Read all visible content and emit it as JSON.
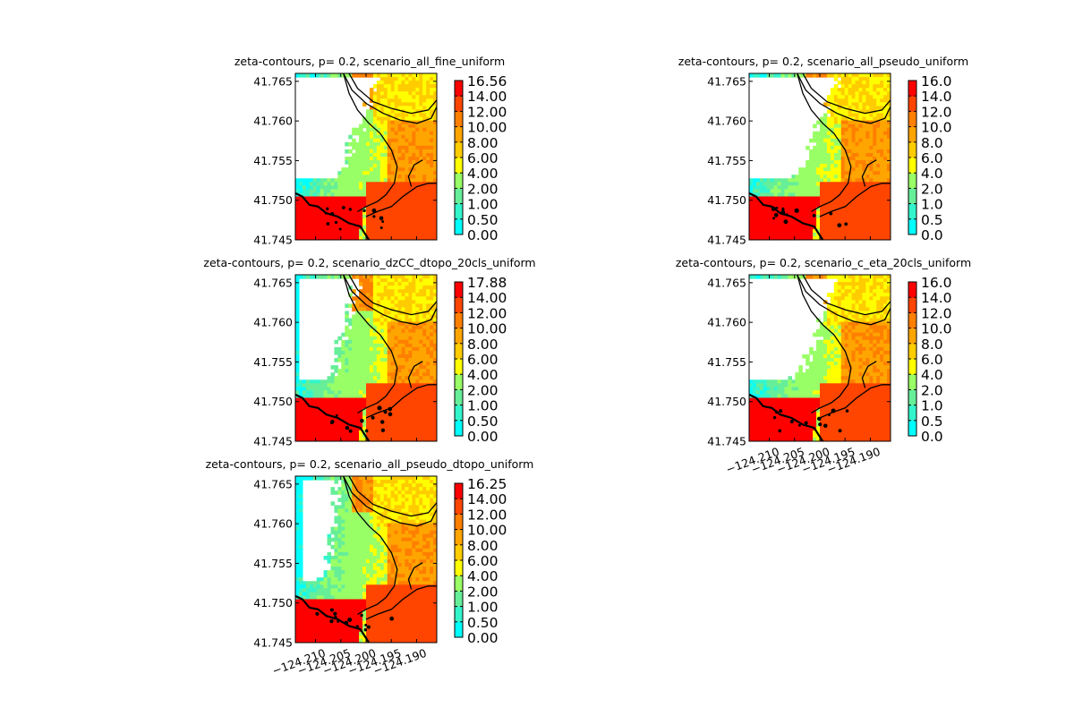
{
  "figure": {
    "background": "#ffffff"
  },
  "colormap": {
    "boundaries": [
      0,
      0.5,
      1,
      2,
      4,
      6,
      8,
      10,
      12,
      14
    ],
    "colors": [
      "#00ffff",
      "#33f5cc",
      "#66ee99",
      "#99ff66",
      "#ffff00",
      "#ffcc00",
      "#ffa500",
      "#ff7f00",
      "#ff4500",
      "#ff0000"
    ],
    "land_color": "#ffffff",
    "contour_color": "#000000"
  },
  "chart_data": [
    {
      "type": "heatmap",
      "title": "zeta-contours, p= 0.2, scenario_all_fine_uniform",
      "xlabel": "",
      "ylabel": "",
      "xlim": [
        -124.214,
        -124.186
      ],
      "ylim": [
        41.745,
        41.766
      ],
      "y_ticks": [
        "41.765",
        "41.760",
        "41.755",
        "41.750",
        "41.745"
      ],
      "x_ticks": [],
      "colorbar_ticks": [
        "16.56",
        "14.00",
        "12.00",
        "10.00",
        "8.00",
        "6.00",
        "4.00",
        "2.00",
        "1.00",
        "0.50",
        "0.00"
      ],
      "colorbar_max": 16.56,
      "dry_extent": 0.85
    },
    {
      "type": "heatmap",
      "title": "zeta-contours, p= 0.2, scenario_all_pseudo_uniform",
      "xlabel": "",
      "ylabel": "",
      "xlim": [
        -124.214,
        -124.186
      ],
      "ylim": [
        41.745,
        41.766
      ],
      "y_ticks": [
        "41.765",
        "41.760",
        "41.755",
        "41.750",
        "41.745"
      ],
      "x_ticks": [],
      "colorbar_ticks": [
        "16.0",
        "14.0",
        "12.0",
        "10.0",
        "8.0",
        "6.0",
        "4.0",
        "2.0",
        "1.0",
        "0.5",
        "0.0"
      ],
      "colorbar_max": 16.0,
      "dry_extent": 0.95
    },
    {
      "type": "heatmap",
      "title": "zeta-contours, p= 0.2, scenario_dzCC_dtopo_20cls_uniform",
      "xlabel": "",
      "ylabel": "",
      "xlim": [
        -124.214,
        -124.186
      ],
      "ylim": [
        41.745,
        41.766
      ],
      "y_ticks": [
        "41.765",
        "41.760",
        "41.755",
        "41.750",
        "41.745"
      ],
      "x_ticks": [],
      "colorbar_ticks": [
        "17.88",
        "14.00",
        "12.00",
        "10.00",
        "8.00",
        "6.00",
        "4.00",
        "2.00",
        "1.00",
        "0.50",
        "0.00"
      ],
      "colorbar_max": 17.88,
      "dry_extent": 0.6
    },
    {
      "type": "heatmap",
      "title": "zeta-contours, p= 0.2, scenario_c_eta_20cls_uniform",
      "xlabel": "",
      "ylabel": "",
      "xlim": [
        -124.214,
        -124.186
      ],
      "ylim": [
        41.745,
        41.766
      ],
      "y_ticks": [
        "41.765",
        "41.760",
        "41.755",
        "41.750",
        "41.745"
      ],
      "x_ticks": [
        "−124.210",
        "−124.205",
        "−124.200",
        "−124.195",
        "−124.190"
      ],
      "colorbar_ticks": [
        "16.0",
        "14.0",
        "12.0",
        "10.0",
        "8.0",
        "6.0",
        "4.0",
        "2.0",
        "1.0",
        "0.5",
        "0.0"
      ],
      "colorbar_max": 16.0,
      "dry_extent": 0.95
    },
    {
      "type": "heatmap",
      "title": "zeta-contours, p= 0.2, scenario_all_pseudo_dtopo_uniform",
      "xlabel": "",
      "ylabel": "",
      "xlim": [
        -124.214,
        -124.186
      ],
      "ylim": [
        41.745,
        41.766
      ],
      "y_ticks": [
        "41.765",
        "41.760",
        "41.755",
        "41.750",
        "41.745"
      ],
      "x_ticks": [
        "−124.210",
        "−124.205",
        "−124.200",
        "−124.195",
        "−124.190"
      ],
      "colorbar_ticks": [
        "16.25",
        "14.00",
        "12.00",
        "10.00",
        "8.00",
        "6.00",
        "4.00",
        "2.00",
        "1.00",
        "0.50",
        "0.00"
      ],
      "colorbar_max": 16.25,
      "dry_extent": 0.35
    }
  ]
}
